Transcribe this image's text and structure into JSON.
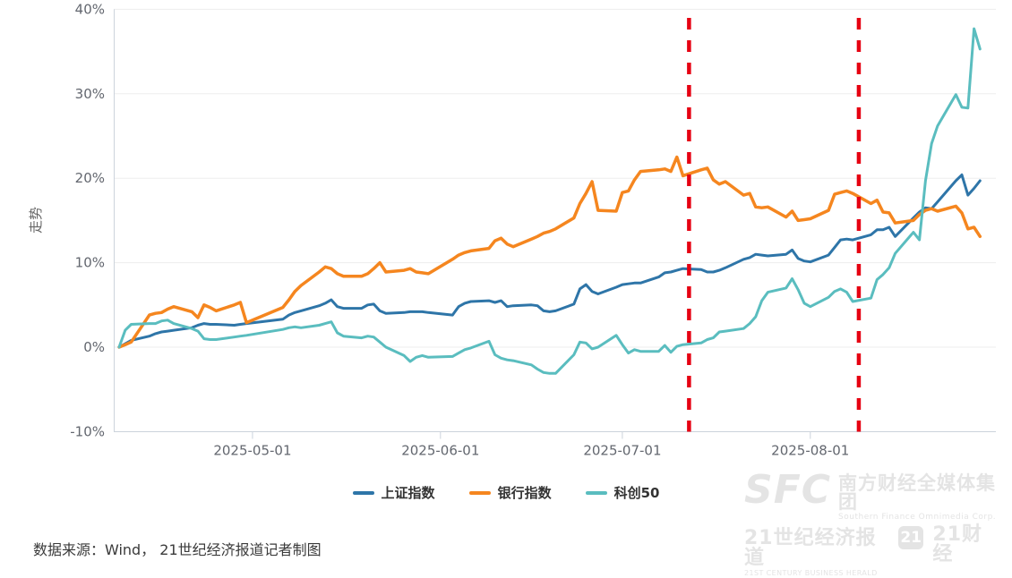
{
  "chart_data": {
    "type": "line",
    "title": "",
    "ylabel": "走势",
    "ylim": [
      -10,
      40
    ],
    "grid": true,
    "legend_position": "bottom",
    "x_range": [
      "2025-04-09",
      "2025-08-30"
    ],
    "yticks": [
      {
        "value": 40,
        "label": "40%"
      },
      {
        "value": 30,
        "label": "30%"
      },
      {
        "value": 20,
        "label": "20%"
      },
      {
        "value": 10,
        "label": "10%"
      },
      {
        "value": 0,
        "label": "0%"
      },
      {
        "value": -10,
        "label": "-10%"
      }
    ],
    "xticks": [
      {
        "date": "2025-05-01",
        "label": "2025-05-01"
      },
      {
        "date": "2025-06-01",
        "label": "2025-06-01"
      },
      {
        "date": "2025-07-01",
        "label": "2025-07-01"
      },
      {
        "date": "2025-08-01",
        "label": "2025-08-01"
      }
    ],
    "dates": [
      "2025-04-09",
      "2025-04-10",
      "2025-04-11",
      "2025-04-14",
      "2025-04-15",
      "2025-04-16",
      "2025-04-17",
      "2025-04-18",
      "2025-04-21",
      "2025-04-22",
      "2025-04-23",
      "2025-04-24",
      "2025-04-25",
      "2025-04-28",
      "2025-04-29",
      "2025-04-30",
      "2025-05-06",
      "2025-05-07",
      "2025-05-08",
      "2025-05-09",
      "2025-05-12",
      "2025-05-13",
      "2025-05-14",
      "2025-05-15",
      "2025-05-16",
      "2025-05-19",
      "2025-05-20",
      "2025-05-21",
      "2025-05-22",
      "2025-05-23",
      "2025-05-26",
      "2025-05-27",
      "2025-05-28",
      "2025-05-29",
      "2025-05-30",
      "2025-06-03",
      "2025-06-04",
      "2025-06-05",
      "2025-06-06",
      "2025-06-09",
      "2025-06-10",
      "2025-06-11",
      "2025-06-12",
      "2025-06-13",
      "2025-06-16",
      "2025-06-17",
      "2025-06-18",
      "2025-06-19",
      "2025-06-20",
      "2025-06-23",
      "2025-06-24",
      "2025-06-25",
      "2025-06-26",
      "2025-06-27",
      "2025-06-30",
      "2025-07-01",
      "2025-07-02",
      "2025-07-03",
      "2025-07-04",
      "2025-07-07",
      "2025-07-08",
      "2025-07-09",
      "2025-07-10",
      "2025-07-11",
      "2025-07-14",
      "2025-07-15",
      "2025-07-16",
      "2025-07-17",
      "2025-07-18",
      "2025-07-21",
      "2025-07-22",
      "2025-07-23",
      "2025-07-24",
      "2025-07-25",
      "2025-07-28",
      "2025-07-29",
      "2025-07-30",
      "2025-07-31",
      "2025-08-01",
      "2025-08-04",
      "2025-08-05",
      "2025-08-06",
      "2025-08-07",
      "2025-08-08",
      "2025-08-11",
      "2025-08-12",
      "2025-08-13",
      "2025-08-14",
      "2025-08-15",
      "2025-08-18",
      "2025-08-19",
      "2025-08-20",
      "2025-08-21",
      "2025-08-22",
      "2025-08-25",
      "2025-08-26",
      "2025-08-27",
      "2025-08-28",
      "2025-08-29"
    ],
    "series": [
      {
        "id": "shanghai-composite",
        "name": "上证指数",
        "color": "#2e75a8",
        "values": [
          0,
          0.4,
          0.8,
          1.3,
          1.6,
          1.8,
          1.9,
          2.0,
          2.3,
          2.6,
          2.8,
          2.7,
          2.7,
          2.6,
          2.7,
          2.8,
          3.3,
          3.8,
          4.1,
          4.3,
          4.9,
          5.2,
          5.6,
          4.8,
          4.6,
          4.6,
          5.0,
          5.1,
          4.3,
          4.0,
          4.1,
          4.2,
          4.2,
          4.2,
          4.1,
          3.8,
          4.8,
          5.2,
          5.4,
          5.5,
          5.3,
          5.5,
          4.8,
          4.9,
          5.0,
          4.9,
          4.3,
          4.2,
          4.3,
          5.1,
          6.9,
          7.4,
          6.6,
          6.3,
          7.1,
          7.4,
          7.5,
          7.6,
          7.6,
          8.3,
          8.8,
          8.9,
          9.1,
          9.3,
          9.2,
          8.9,
          8.9,
          9.1,
          9.4,
          10.4,
          10.6,
          11.0,
          10.9,
          10.8,
          11.0,
          11.5,
          10.5,
          10.2,
          10.1,
          10.9,
          11.8,
          12.7,
          12.8,
          12.7,
          13.3,
          13.9,
          13.9,
          14.2,
          13.1,
          15.3,
          16.0,
          16.5,
          16.4,
          17.2,
          19.7,
          20.4,
          18.0,
          18.8,
          19.7
        ]
      },
      {
        "id": "bank-index",
        "name": "银行指数",
        "color": "#f5861f",
        "values": [
          0,
          0.3,
          0.6,
          3.8,
          4.0,
          4.1,
          4.5,
          4.8,
          4.2,
          3.5,
          5.0,
          4.7,
          4.3,
          5.0,
          5.3,
          2.9,
          4.7,
          5.6,
          6.6,
          7.3,
          8.9,
          9.5,
          9.3,
          8.7,
          8.4,
          8.4,
          8.7,
          9.3,
          10.0,
          8.9,
          9.1,
          9.3,
          8.9,
          8.8,
          8.7,
          10.4,
          10.9,
          11.2,
          11.4,
          11.7,
          12.6,
          12.9,
          12.2,
          11.9,
          12.8,
          13.1,
          13.5,
          13.7,
          14.0,
          15.3,
          17.0,
          18.2,
          19.6,
          16.2,
          16.1,
          18.3,
          18.5,
          19.8,
          20.8,
          21.0,
          21.1,
          20.8,
          22.5,
          20.3,
          21.0,
          21.2,
          19.8,
          19.3,
          19.6,
          18.0,
          18.2,
          16.6,
          16.5,
          16.6,
          15.4,
          16.1,
          15.0,
          15.1,
          15.2,
          16.2,
          18.1,
          18.3,
          18.5,
          18.2,
          17.0,
          17.4,
          16.0,
          15.9,
          14.7,
          15.0,
          15.7,
          16.2,
          16.4,
          16.1,
          16.7,
          15.9,
          14.0,
          14.2,
          13.1
        ]
      },
      {
        "id": "star50",
        "name": "科创50",
        "color": "#5abdbf",
        "values": [
          0,
          2.0,
          2.7,
          2.8,
          2.8,
          3.1,
          3.2,
          2.8,
          2.2,
          1.9,
          1.0,
          0.9,
          0.9,
          1.2,
          1.3,
          1.4,
          2.1,
          2.3,
          2.4,
          2.3,
          2.6,
          2.8,
          3.0,
          1.7,
          1.3,
          1.1,
          1.3,
          1.2,
          0.6,
          0.0,
          -1.0,
          -1.7,
          -1.2,
          -1.0,
          -1.2,
          -1.1,
          -0.7,
          -0.3,
          -0.1,
          0.7,
          -0.9,
          -1.3,
          -1.5,
          -1.6,
          -2.1,
          -2.6,
          -3.0,
          -3.1,
          -3.1,
          -0.9,
          0.6,
          0.5,
          -0.2,
          0.0,
          1.4,
          0.3,
          -0.7,
          -0.3,
          -0.5,
          -0.5,
          0.2,
          -0.6,
          0.1,
          0.3,
          0.5,
          0.9,
          1.1,
          1.8,
          1.9,
          2.2,
          2.8,
          3.6,
          5.5,
          6.5,
          7.0,
          8.1,
          6.8,
          5.2,
          4.8,
          5.9,
          6.6,
          6.9,
          6.5,
          5.4,
          5.8,
          8.0,
          8.6,
          9.4,
          11.1,
          13.6,
          12.7,
          19.7,
          24.1,
          26.2,
          29.9,
          28.4,
          28.3,
          37.7,
          35.3
        ]
      }
    ],
    "annotations": {
      "vlines": [
        {
          "date": "2025-07-12",
          "color": "#e60012",
          "style": "dashed"
        },
        {
          "date": "2025-08-09",
          "color": "#e60012",
          "style": "dashed"
        }
      ]
    },
    "axis_colors": {
      "gridline": "#ededed",
      "axis_line": "#ccd3dc",
      "tick_label": "#63676f"
    }
  },
  "legend": {
    "items": [
      {
        "label": "上证指数",
        "color": "#2e75a8"
      },
      {
        "label": "银行指数",
        "color": "#f5861f"
      },
      {
        "label": "科创50",
        "color": "#5abdbf"
      }
    ]
  },
  "source_note": "数据来源：Wind， 21世纪经济报道记者制图",
  "watermark": {
    "brand": "SFC",
    "group_cn": "南方财经全媒体集团",
    "group_en": "Southern Finance Omnimedia Corp.",
    "paper_cn": "21世纪经济报道",
    "paper_en": "21ST CENTURY BUSINESS HERALD",
    "badge": "21",
    "app_cn": "21财经"
  }
}
